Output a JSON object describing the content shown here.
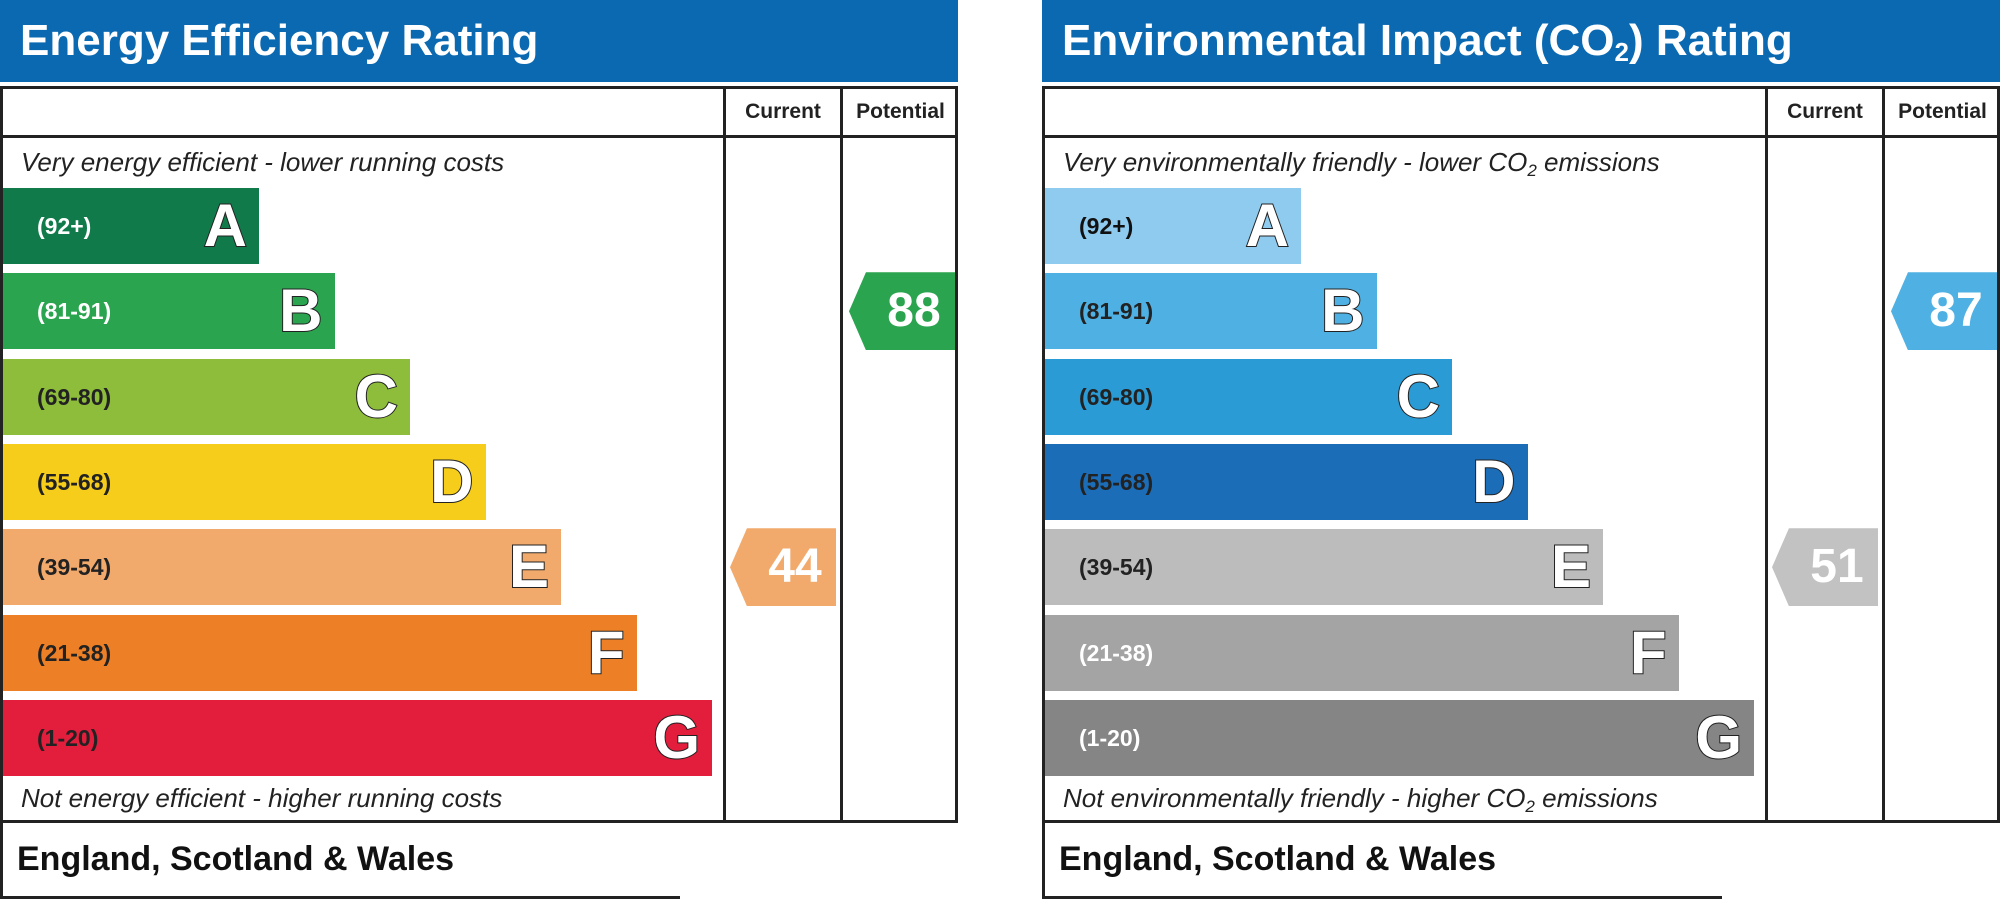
{
  "colors": {
    "header_bg": "#0a69b1"
  },
  "left": {
    "title": "Energy Efficiency Rating",
    "col_current": "Current",
    "col_potential": "Potential",
    "top_caption": "Very energy efficient - lower running costs",
    "bottom_caption": "Not energy efficient - higher running costs",
    "footer": "England, Scotland & Wales",
    "bands": [
      {
        "range": "(92+)",
        "letter": "A",
        "color": "#117a4a",
        "text_color": "#ffffff"
      },
      {
        "range": "(81-91)",
        "letter": "B",
        "color": "#2aa44f",
        "text_color": "#ffffff"
      },
      {
        "range": "(69-80)",
        "letter": "C",
        "color": "#8dbd3a",
        "text_color": "#222222"
      },
      {
        "range": "(55-68)",
        "letter": "D",
        "color": "#f6cd1a",
        "text_color": "#222222"
      },
      {
        "range": "(39-54)",
        "letter": "E",
        "color": "#f2aa6c",
        "text_color": "#222222"
      },
      {
        "range": "(21-38)",
        "letter": "F",
        "color": "#ed8026",
        "text_color": "#222222"
      },
      {
        "range": "(1-20)",
        "letter": "G",
        "color": "#e31d3c",
        "text_color": "#222222"
      }
    ],
    "current": {
      "value": "44",
      "band": "E",
      "color": "#f2aa6c"
    },
    "potential": {
      "value": "88",
      "band": "B",
      "color": "#2aa44f"
    }
  },
  "right": {
    "title_pre": "Environmental Impact (CO",
    "title_sub": "2",
    "title_post": ") Rating",
    "col_current": "Current",
    "col_potential": "Potential",
    "top_caption_pre": "Very environmentally friendly - lower CO",
    "top_caption_sub": "2",
    "top_caption_post": " emissions",
    "bottom_caption_pre": "Not environmentally friendly - higher CO",
    "bottom_caption_sub": "2",
    "bottom_caption_post": " emissions",
    "footer": "England, Scotland & Wales",
    "bands": [
      {
        "range": "(92+)",
        "letter": "A",
        "color": "#8ecbef",
        "text_color": "#111111"
      },
      {
        "range": "(81-91)",
        "letter": "B",
        "color": "#4fb1e3",
        "text_color": "#222222"
      },
      {
        "range": "(69-80)",
        "letter": "C",
        "color": "#2b9bd5",
        "text_color": "#222222"
      },
      {
        "range": "(55-68)",
        "letter": "D",
        "color": "#1b6db8",
        "text_color": "#222222"
      },
      {
        "range": "(39-54)",
        "letter": "E",
        "color": "#bcbcbc",
        "text_color": "#222222"
      },
      {
        "range": "(21-38)",
        "letter": "F",
        "color": "#a4a4a4",
        "text_color": "#ffffff"
      },
      {
        "range": "(1-20)",
        "letter": "G",
        "color": "#858585",
        "text_color": "#ffffff"
      }
    ],
    "current": {
      "value": "51",
      "band": "E",
      "color": "#c2c2c2"
    },
    "potential": {
      "value": "87",
      "band": "B",
      "color": "#4fb1e3"
    }
  }
}
